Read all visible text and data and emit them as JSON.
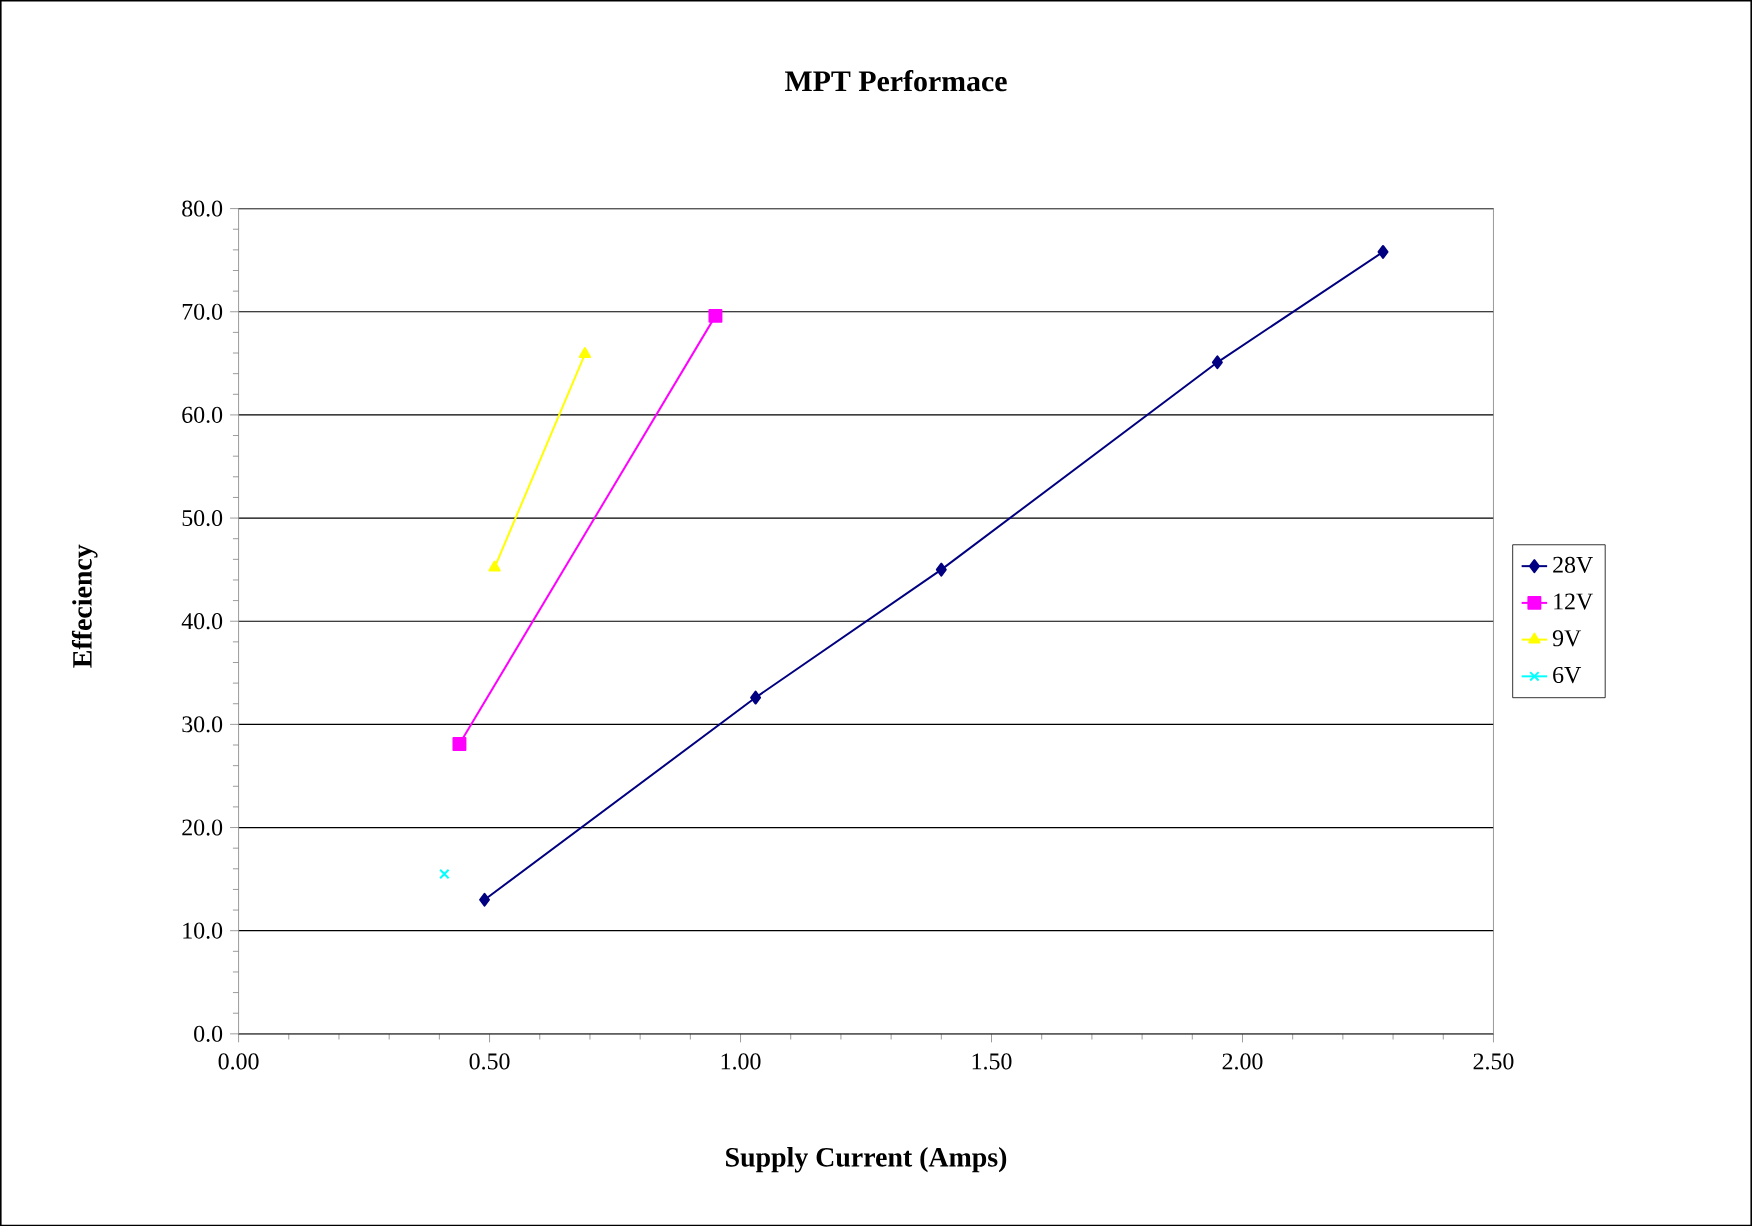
{
  "chart_data": {
    "type": "line",
    "title": "MPT Performace",
    "xlabel": "Supply Current (Amps)",
    "ylabel": "Effeciency",
    "xlim": [
      0,
      2.5
    ],
    "ylim": [
      0,
      80
    ],
    "xticks": [
      {
        "value": 0,
        "label": "0.00"
      },
      {
        "value": 0.5,
        "label": "0.50"
      },
      {
        "value": 1,
        "label": "1.00"
      },
      {
        "value": 1.5,
        "label": "1.50"
      },
      {
        "value": 2,
        "label": "2.00"
      },
      {
        "value": 2.5,
        "label": "2.50"
      }
    ],
    "yticks": [
      {
        "value": 0,
        "label": "0.0"
      },
      {
        "value": 10,
        "label": "10.0"
      },
      {
        "value": 20,
        "label": "20.0"
      },
      {
        "value": 30,
        "label": "30.0"
      },
      {
        "value": 40,
        "label": "40.0"
      },
      {
        "value": 50,
        "label": "50.0"
      },
      {
        "value": 60,
        "label": "60.0"
      },
      {
        "value": 70,
        "label": "70.0"
      },
      {
        "value": 80,
        "label": "80.0"
      }
    ],
    "grid": "y",
    "legend": "right",
    "line_style": "solid",
    "series": [
      {
        "name": "28V",
        "color": "#000080",
        "marker": "diamond",
        "x": [
          0.49,
          1.03,
          1.4,
          1.95,
          2.28
        ],
        "values": [
          13.0,
          32.6,
          45.0,
          65.1,
          75.8
        ]
      },
      {
        "name": "12V",
        "color": "#ff00ff",
        "marker": "square",
        "x": [
          0.44,
          0.95
        ],
        "values": [
          28.1,
          69.6
        ]
      },
      {
        "name": "9V",
        "color": "#ffff00",
        "marker": "triangle",
        "x": [
          0.51,
          0.69
        ],
        "values": [
          45.2,
          65.9
        ]
      },
      {
        "name": "6V",
        "color": "#00ffff",
        "marker": "cross",
        "x": [
          0.41
        ],
        "values": [
          15.5
        ]
      }
    ]
  }
}
